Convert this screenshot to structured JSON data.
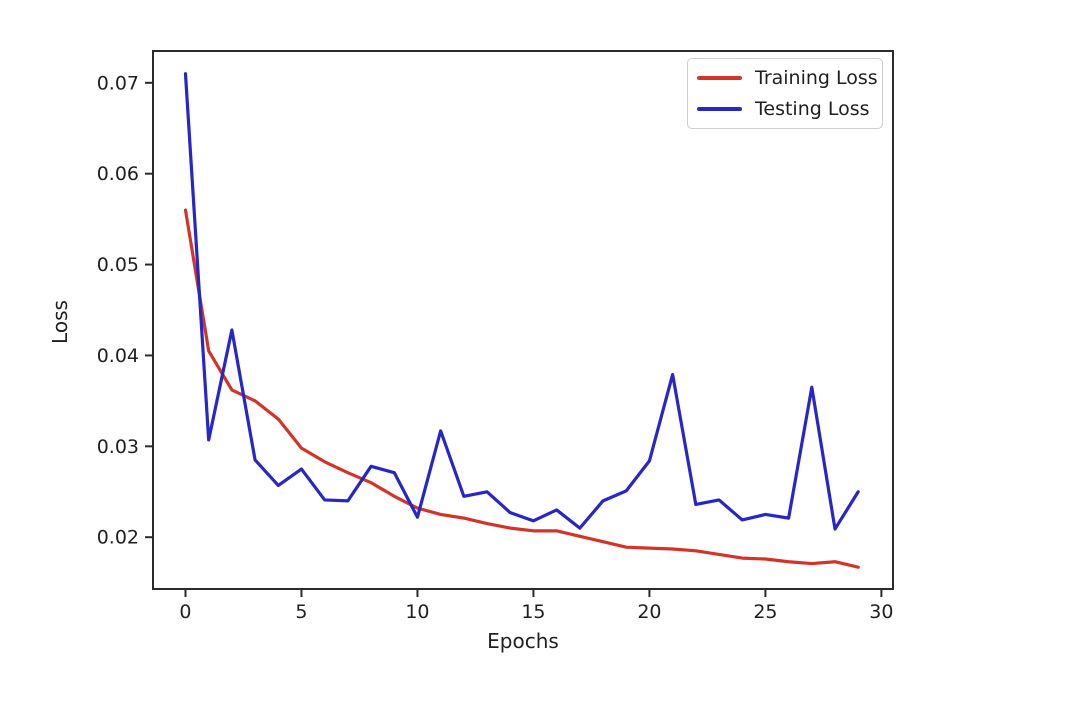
{
  "figure": {
    "xlabel": "Epochs",
    "ylabel": "Loss"
  },
  "legend": {
    "entries": [
      {
        "label": "Training Loss",
        "color": "#d43428"
      },
      {
        "label": "Testing Loss",
        "color": "#2727c8"
      }
    ]
  },
  "chart_data": {
    "type": "line",
    "title": "",
    "xlabel": "Epochs",
    "ylabel": "Loss",
    "x": [
      0,
      1,
      2,
      3,
      4,
      5,
      6,
      7,
      8,
      9,
      10,
      11,
      12,
      13,
      14,
      15,
      16,
      17,
      18,
      19,
      20,
      21,
      22,
      23,
      24,
      25,
      26,
      27,
      28,
      29
    ],
    "series": [
      {
        "name": "Training Loss",
        "color": "#d43428",
        "values": [
          0.056,
          0.0405,
          0.0362,
          0.035,
          0.033,
          0.0298,
          0.0283,
          0.0271,
          0.026,
          0.0245,
          0.0232,
          0.0225,
          0.0221,
          0.0215,
          0.021,
          0.0207,
          0.0207,
          0.0201,
          0.0195,
          0.0189,
          0.0188,
          0.0187,
          0.0185,
          0.0181,
          0.0177,
          0.0176,
          0.0173,
          0.0171,
          0.0173,
          0.0167
        ]
      },
      {
        "name": "Testing Loss",
        "color": "#2727c8",
        "values": [
          0.071,
          0.0307,
          0.0428,
          0.0285,
          0.0257,
          0.0275,
          0.0241,
          0.024,
          0.0278,
          0.0271,
          0.0222,
          0.0317,
          0.0245,
          0.025,
          0.0227,
          0.0218,
          0.023,
          0.021,
          0.024,
          0.0251,
          0.0284,
          0.0379,
          0.0236,
          0.0241,
          0.0219,
          0.0225,
          0.0221,
          0.0365,
          0.0209,
          0.025
        ]
      }
    ],
    "xticks": [
      0,
      5,
      10,
      15,
      20,
      25,
      30
    ],
    "yticks": [
      0.02,
      0.03,
      0.04,
      0.05,
      0.06,
      0.07
    ],
    "xlim": [
      -1.4,
      30.5
    ],
    "ylim": [
      0.0143,
      0.0735
    ],
    "grid": false,
    "legend_position": "upper right"
  }
}
